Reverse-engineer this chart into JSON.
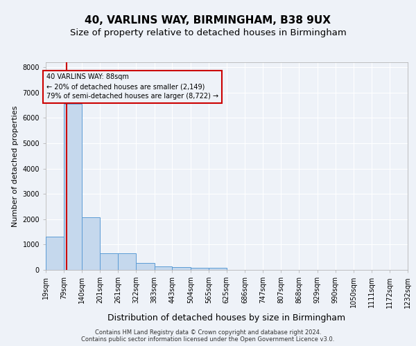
{
  "title": "40, VARLINS WAY, BIRMINGHAM, B38 9UX",
  "subtitle": "Size of property relative to detached houses in Birmingham",
  "xlabel": "Distribution of detached houses by size in Birmingham",
  "ylabel": "Number of detached properties",
  "footer_line1": "Contains HM Land Registry data © Crown copyright and database right 2024.",
  "footer_line2": "Contains public sector information licensed under the Open Government Licence v3.0.",
  "bar_color": "#c5d8ed",
  "bar_edgecolor": "#5b9bd5",
  "annotation_line_color": "#cc0000",
  "annotation_box_text": "40 VARLINS WAY: 88sqm\n← 20% of detached houses are smaller (2,149)\n79% of semi-detached houses are larger (8,722) →",
  "property_sqm": 88,
  "ylim": [
    0,
    8200
  ],
  "yticks": [
    0,
    1000,
    2000,
    3000,
    4000,
    5000,
    6000,
    7000,
    8000
  ],
  "bin_edges": [
    19,
    79,
    140,
    201,
    261,
    322,
    383,
    443,
    504,
    565,
    625,
    686,
    747,
    807,
    868,
    929,
    990,
    1050,
    1111,
    1172,
    1232
  ],
  "bin_labels": [
    "19sqm",
    "79sqm",
    "140sqm",
    "201sqm",
    "261sqm",
    "322sqm",
    "383sqm",
    "443sqm",
    "504sqm",
    "565sqm",
    "625sqm",
    "686sqm",
    "747sqm",
    "807sqm",
    "868sqm",
    "929sqm",
    "990sqm",
    "1050sqm",
    "1111sqm",
    "1172sqm",
    "1232sqm"
  ],
  "bar_heights": [
    1320,
    6560,
    2080,
    650,
    650,
    270,
    130,
    110,
    80,
    80,
    0,
    0,
    0,
    0,
    0,
    0,
    0,
    0,
    0,
    0
  ],
  "background_color": "#eef2f8",
  "grid_color": "#ffffff",
  "title_fontsize": 11,
  "subtitle_fontsize": 9.5,
  "tick_fontsize": 7,
  "xlabel_fontsize": 9,
  "ylabel_fontsize": 8,
  "annotation_fontsize": 7,
  "footer_fontsize": 6
}
